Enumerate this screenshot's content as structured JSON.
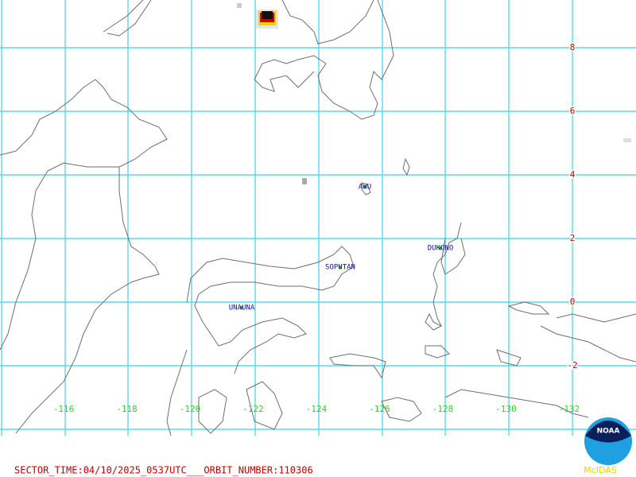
{
  "map": {
    "longitude_labels": [
      "-116",
      "-118",
      "-120",
      "-122",
      "-124",
      "-126",
      "-128",
      "-130",
      "-132"
    ],
    "latitude_labels": [
      "8",
      "6",
      "4",
      "2",
      "0",
      "-2"
    ],
    "volcanoes": [
      "AWU",
      "SOPUTAN",
      "DUKONO",
      "UNAUNA"
    ],
    "footer": "SECTOR_TIME:04/10/2025_0537UTC___ORBIT_NUMBER:110306",
    "logo": {
      "text": "NOAA",
      "caption": "McIDAS"
    }
  }
}
